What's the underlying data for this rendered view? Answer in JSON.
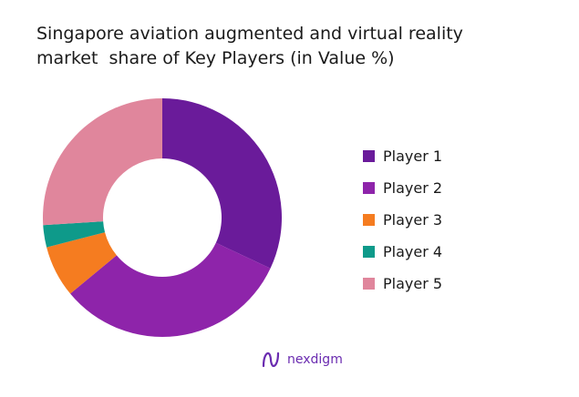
{
  "chart_data": {
    "type": "pie",
    "title_lines": [
      "Singapore aviation augmented and virtual reality",
      "market  share of Key Players (in Value %)"
    ],
    "categories": [
      "Player 1",
      "Player 2",
      "Player 3",
      "Player 4",
      "Player 5"
    ],
    "values": [
      32,
      32,
      7,
      3,
      26
    ],
    "colors": [
      "#6a1b9a",
      "#8e24aa",
      "#f57c20",
      "#0e9a8a",
      "#e0869c"
    ],
    "donut": true,
    "legend_position": "right"
  },
  "brand": {
    "name": "nexdigm",
    "color": "#6a2bb0"
  }
}
